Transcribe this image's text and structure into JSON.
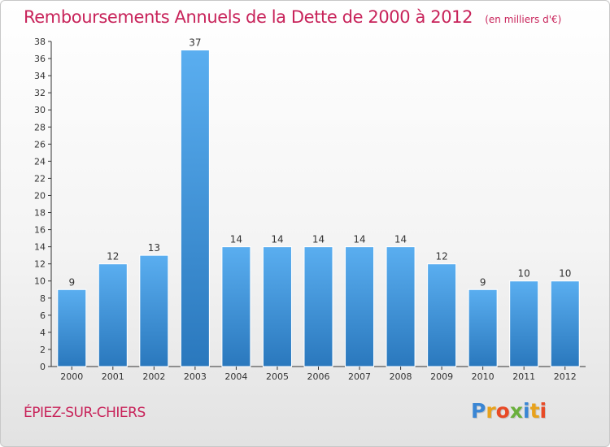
{
  "header": {
    "title": "Remboursements Annuels de la Dette de 2000 à 2012",
    "subtitle": "(en milliers d'€)"
  },
  "footer": {
    "commune": "ÉPIEZ-SUR-CHIERS",
    "logo_text": "Proxiti",
    "logo_colors": [
      "#3a86d4",
      "#e8a21c",
      "#e84a26",
      "#6ab03c",
      "#3a86d4",
      "#e8a21c",
      "#e84a26"
    ]
  },
  "colors": {
    "title": "#c8235a",
    "bar_light": "#5aaef0",
    "bar_dark": "#2a78bd",
    "axis": "#333333",
    "grid": "#d9d9d9"
  },
  "chart_data": {
    "type": "bar",
    "title": "Remboursements Annuels de la Dette de 2000 à 2012",
    "subtitle": "(en milliers d'€)",
    "categories": [
      "2000",
      "2001",
      "2002",
      "2003",
      "2004",
      "2005",
      "2006",
      "2007",
      "2008",
      "2009",
      "2010",
      "2011",
      "2012"
    ],
    "values": [
      9,
      12,
      13,
      37,
      14,
      14,
      14,
      14,
      14,
      12,
      9,
      10,
      10
    ],
    "ylim": [
      0,
      38
    ],
    "yticks": [
      0,
      2,
      4,
      6,
      8,
      10,
      12,
      14,
      16,
      18,
      20,
      22,
      24,
      26,
      28,
      30,
      32,
      34,
      36,
      38
    ],
    "grid": false,
    "legend": "none"
  }
}
